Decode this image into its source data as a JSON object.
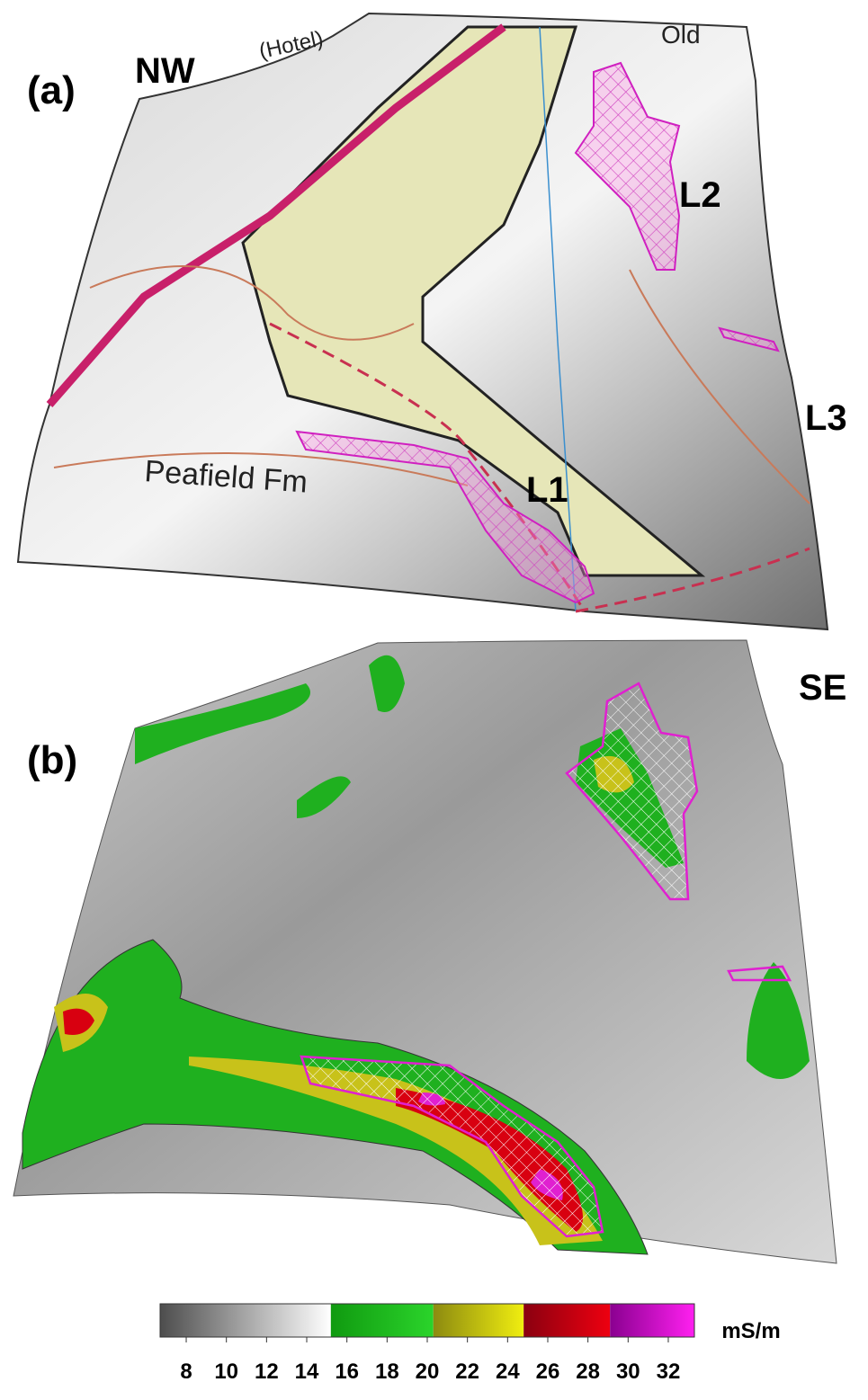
{
  "panels": [
    {
      "label": "(a)",
      "corner_label": "NW",
      "map_labels": [
        "Peafield Fm",
        "Old",
        "(Hotel)",
        "L1",
        "L2",
        "L3"
      ]
    },
    {
      "label": "(b)",
      "corner_label": "SE"
    }
  ],
  "colorbar": {
    "lim": [
      6.7,
      33.3
    ],
    "ticks": [
      8,
      10,
      12,
      14,
      16,
      18,
      20,
      22,
      24,
      26,
      28,
      30,
      32
    ],
    "unit": "mS/m",
    "bands": [
      {
        "from": 6.7,
        "to": 15.2,
        "colors": [
          "#4d4d4d",
          "#ffffff"
        ]
      },
      {
        "from": 15.2,
        "to": 20.3,
        "colors": [
          "#109a10",
          "#2bd42b"
        ]
      },
      {
        "from": 20.3,
        "to": 24.8,
        "colors": [
          "#8c8a10",
          "#f0ee10"
        ]
      },
      {
        "from": 24.8,
        "to": 29.1,
        "colors": [
          "#8a0010",
          "#ee0010"
        ]
      },
      {
        "from": 29.1,
        "to": 33.3,
        "colors": [
          "#8a0090",
          "#ff20f0"
        ]
      }
    ]
  }
}
